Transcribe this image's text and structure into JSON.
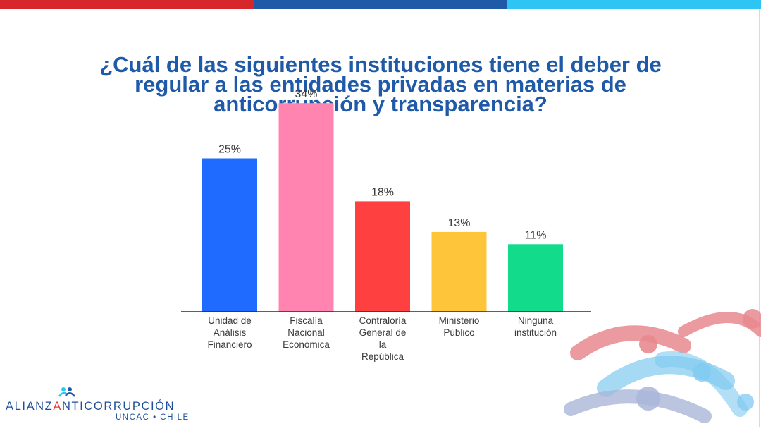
{
  "colors": {
    "top_bar": [
      "#d7262c",
      "#1f5aa8",
      "#2ec5f5"
    ],
    "title": "#1f5aa8"
  },
  "title_lines": [
    "¿Cuál de las siguientes instituciones tiene el deber de",
    "regular a las entidades privadas en materias de",
    "anticorrupción y transparencia?"
  ],
  "chart_data": {
    "type": "bar",
    "title": "¿Cuál de las siguientes instituciones tiene el deber de regular a las entidades privadas en materias de anticorrupción y transparencia?",
    "categories": [
      [
        "Unidad de",
        "Análisis",
        "Financiero"
      ],
      [
        "Fiscalía",
        "Nacional",
        "Económica"
      ],
      [
        "Contraloría",
        "General de",
        "la",
        "República"
      ],
      [
        "Ministerio",
        "Público"
      ],
      [
        "Ninguna",
        "institución"
      ]
    ],
    "values": [
      25,
      34,
      18,
      13,
      11
    ],
    "value_labels": [
      "25%",
      "34%",
      "18%",
      "13%",
      "11%"
    ],
    "colors": [
      "#1f6bff",
      "#ff85b0",
      "#ff4040",
      "#ffc53a",
      "#12dc8c"
    ],
    "ylim": [
      0,
      40
    ],
    "grid": false,
    "legend": "none"
  },
  "logo": {
    "main_prefix": "ALIANZ",
    "main_accent": "A",
    "main_suffix": "NTICORRUPCIÓN",
    "sub": "UNCAC • CHILE"
  }
}
